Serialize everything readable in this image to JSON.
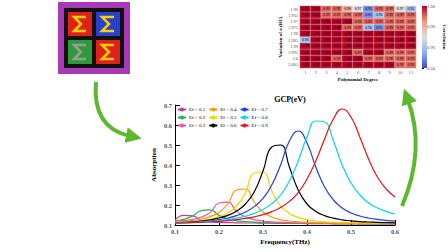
{
  "chart_data": [
    {
      "type": "heatmap",
      "xlabel": "Polynomial Degree",
      "ylabel": "Variation of a (RU)",
      "x": [
        1,
        2,
        3,
        4,
        5,
        6,
        7,
        8,
        9,
        10,
        11
      ],
      "y": [
        "1.96",
        "1.965",
        "1.97",
        "1.975",
        "1.98",
        "1.985",
        "1.99",
        "1.995",
        "2.0",
        "2.005"
      ],
      "cells": [
        [
          1,
          1,
          0.99,
          0.99,
          0.98,
          0.97,
          0.95,
          0.99,
          0.99,
          0.97,
          0.96
        ],
        [
          1,
          1,
          0.99,
          0.99,
          0.99,
          0.99,
          0.95,
          0.96,
          0.99,
          0.99,
          0.99
        ],
        [
          1,
          1,
          1,
          1,
          1,
          0.99,
          0.99,
          0.99,
          0.99,
          0.99,
          0.99
        ],
        [
          1,
          1,
          1,
          1,
          0.99,
          0.99,
          0.96,
          0.95,
          0.99,
          0.99,
          0.99
        ],
        [
          1,
          1,
          1,
          1,
          1,
          1,
          1,
          1,
          1,
          1,
          1
        ],
        [
          0.96,
          1,
          1,
          1,
          1,
          1,
          1,
          1,
          1,
          1,
          1
        ],
        [
          1,
          1,
          1,
          1,
          1,
          1,
          1,
          1,
          1,
          1,
          1
        ],
        [
          1,
          1,
          1,
          1,
          1,
          0.99,
          1,
          1,
          0.99,
          0.99,
          0.99
        ],
        [
          1,
          1,
          1,
          0.99,
          1,
          1,
          0.99,
          0.99,
          0.99,
          0.99,
          0.99
        ],
        [
          1,
          1,
          1,
          1,
          1,
          1,
          1,
          1,
          1,
          0.99,
          0.99
        ]
      ],
      "value_labels": [
        [
          "1.00",
          "1.00",
          "0.99",
          "0.99",
          "0.98",
          "0.97",
          "0.95",
          "0.99",
          "0.99",
          "0.97",
          "0.96"
        ],
        [
          "1.00",
          "1.00",
          "0.99",
          "0.99",
          "0.99",
          "0.99",
          "0.95",
          "0.96",
          "0.99",
          "0.99",
          "0.99"
        ],
        [
          "1.00",
          "1.00",
          "1.00",
          "1.00",
          "1.00",
          "0.99",
          "0.99",
          "0.99",
          "0.99",
          "0.99",
          "0.99"
        ],
        [
          "1.00",
          "1.00",
          "1.00",
          "1.00",
          "0.99",
          "0.99",
          "0.96",
          "0.95",
          "0.99",
          "0.99",
          "0.99"
        ],
        [
          "1.00",
          "1.00",
          "1.00",
          "1.00",
          "1.00",
          "1.00",
          "1.00",
          "1.00",
          "1.00",
          "1.00",
          "1.00"
        ],
        [
          "0.96",
          "1.00",
          "1.00",
          "1.00",
          "1.00",
          "1.00",
          "1.00",
          "1.00",
          "1.00",
          "1.00",
          "1.00"
        ],
        [
          "1.00",
          "1.00",
          "1.00",
          "1.00",
          "1.00",
          "1.00",
          "1.00",
          "1.00",
          "1.00",
          "1.00",
          "1.00"
        ],
        [
          "1.00",
          "1.00",
          "1.00",
          "1.00",
          "1.00",
          "0.99",
          "1.00",
          "1.00",
          "0.99",
          "0.99",
          "0.99"
        ],
        [
          "1.00",
          "1.00",
          "1.00",
          "0.99",
          "1.00",
          "1.00",
          "0.99",
          "0.99",
          "0.99",
          "0.99",
          "0.99"
        ],
        [
          "1.00",
          "1.00",
          "1.00",
          "1.00",
          "1.00",
          "1.00",
          "1.00",
          "1.00",
          "1.00",
          "0.99",
          "0.99"
        ]
      ],
      "data_labels": true,
      "colorbar": {
        "label": "Correlation",
        "range": [
          0.94,
          1
        ],
        "ticks": [
          0.94,
          0.96,
          0.98,
          {
            "value": 1,
            "label": "1.00"
          }
        ]
      }
    },
    {
      "type": "line",
      "title": "GCP(eV)",
      "xlabel": "Frequency(THz)",
      "ylabel": "Absorption",
      "x": [
        0.1,
        0.12,
        0.14,
        0.16,
        0.18,
        0.2,
        0.22,
        0.24,
        0.26,
        0.28,
        0.3,
        0.32,
        0.34,
        0.36,
        0.38,
        0.4,
        0.42,
        0.44,
        0.46,
        0.48,
        0.5,
        0.52,
        0.54,
        0.56,
        0.58,
        0.6
      ],
      "xlim": [
        0.1,
        0.6
      ],
      "xticks": [
        0.1,
        0.2,
        0.3,
        0.4,
        0.5,
        0.6
      ],
      "ylim": [
        0.1,
        0.7
      ],
      "yticks": [
        0.1,
        0.2,
        0.3,
        0.4,
        0.5,
        0.6,
        0.7
      ],
      "legend": "top-left",
      "series": [
        {
          "name": "Ef = 0.1",
          "color": "#c03aa8",
          "values": [
            0.125,
            0.148,
            0.146,
            0.124,
            0.116,
            0.113,
            0.112,
            0.111,
            0.11,
            0.11,
            0.109,
            0.109,
            0.108,
            0.108,
            0.108,
            0.107,
            0.107,
            0.107,
            0.106,
            0.106,
            0.106,
            0.106,
            0.105,
            0.105,
            0.105,
            0.105
          ]
        },
        {
          "name": "Ef = 0.2",
          "color": "#22b14c",
          "values": [
            0.12,
            0.128,
            0.145,
            0.172,
            0.176,
            0.148,
            0.13,
            0.121,
            0.117,
            0.114,
            0.112,
            0.111,
            0.11,
            0.11,
            0.109,
            0.109,
            0.108,
            0.108,
            0.107,
            0.107,
            0.107,
            0.106,
            0.106,
            0.106,
            0.105,
            0.105
          ]
        },
        {
          "name": "Ef = 0.3",
          "color": "#ff4fa3",
          "values": [
            0.118,
            0.122,
            0.128,
            0.14,
            0.163,
            0.21,
            0.214,
            0.168,
            0.141,
            0.127,
            0.12,
            0.116,
            0.114,
            0.112,
            0.111,
            0.11,
            0.11,
            0.109,
            0.109,
            0.108,
            0.108,
            0.107,
            0.107,
            0.107,
            0.106,
            0.106
          ]
        },
        {
          "name": "Ef = 0.4",
          "color": "#ff9900",
          "values": [
            0.115,
            0.118,
            0.122,
            0.13,
            0.142,
            0.163,
            0.205,
            0.275,
            0.28,
            0.215,
            0.165,
            0.14,
            0.127,
            0.12,
            0.116,
            0.114,
            0.112,
            0.111,
            0.11,
            0.11,
            0.109,
            0.109,
            0.108,
            0.108,
            0.107,
            0.107
          ]
        },
        {
          "name": "Ef = 0.5",
          "color": "#f2d200",
          "values": [
            0.113,
            0.115,
            0.118,
            0.123,
            0.13,
            0.142,
            0.16,
            0.195,
            0.26,
            0.36,
            0.365,
            0.27,
            0.195,
            0.158,
            0.138,
            0.127,
            0.12,
            0.116,
            0.113,
            0.112,
            0.111,
            0.11,
            0.11,
            0.109,
            0.109,
            0.108
          ]
        },
        {
          "name": "Ef = 0.6",
          "color": "#000000",
          "values": [
            0.112,
            0.113,
            0.116,
            0.12,
            0.126,
            0.135,
            0.148,
            0.17,
            0.205,
            0.265,
            0.37,
            0.49,
            0.5,
            0.39,
            0.275,
            0.205,
            0.168,
            0.147,
            0.134,
            0.126,
            0.121,
            0.117,
            0.115,
            0.113,
            0.112,
            0.111
          ]
        },
        {
          "name": "Ef = 0.7",
          "color": "#1f3fe0",
          "values": [
            0.11,
            0.112,
            0.114,
            0.117,
            0.121,
            0.127,
            0.135,
            0.147,
            0.165,
            0.192,
            0.233,
            0.3,
            0.4,
            0.52,
            0.57,
            0.51,
            0.39,
            0.29,
            0.225,
            0.185,
            0.16,
            0.145,
            0.135,
            0.128,
            0.123,
            0.119
          ]
        },
        {
          "name": "Ef = 0.8",
          "color": "#00d8e8",
          "values": [
            0.11,
            0.111,
            0.113,
            0.115,
            0.118,
            0.122,
            0.127,
            0.134,
            0.144,
            0.158,
            0.178,
            0.207,
            0.25,
            0.32,
            0.42,
            0.54,
            0.62,
            0.615,
            0.52,
            0.4,
            0.31,
            0.25,
            0.21,
            0.185,
            0.168,
            0.155
          ]
        },
        {
          "name": "Ef = 0.9",
          "color": "#e8141c",
          "values": [
            0.11,
            0.11,
            0.112,
            0.113,
            0.115,
            0.118,
            0.122,
            0.127,
            0.133,
            0.141,
            0.152,
            0.167,
            0.188,
            0.218,
            0.262,
            0.33,
            0.42,
            0.53,
            0.63,
            0.68,
            0.64,
            0.54,
            0.43,
            0.34,
            0.28,
            0.24
          ]
        }
      ]
    }
  ]
}
